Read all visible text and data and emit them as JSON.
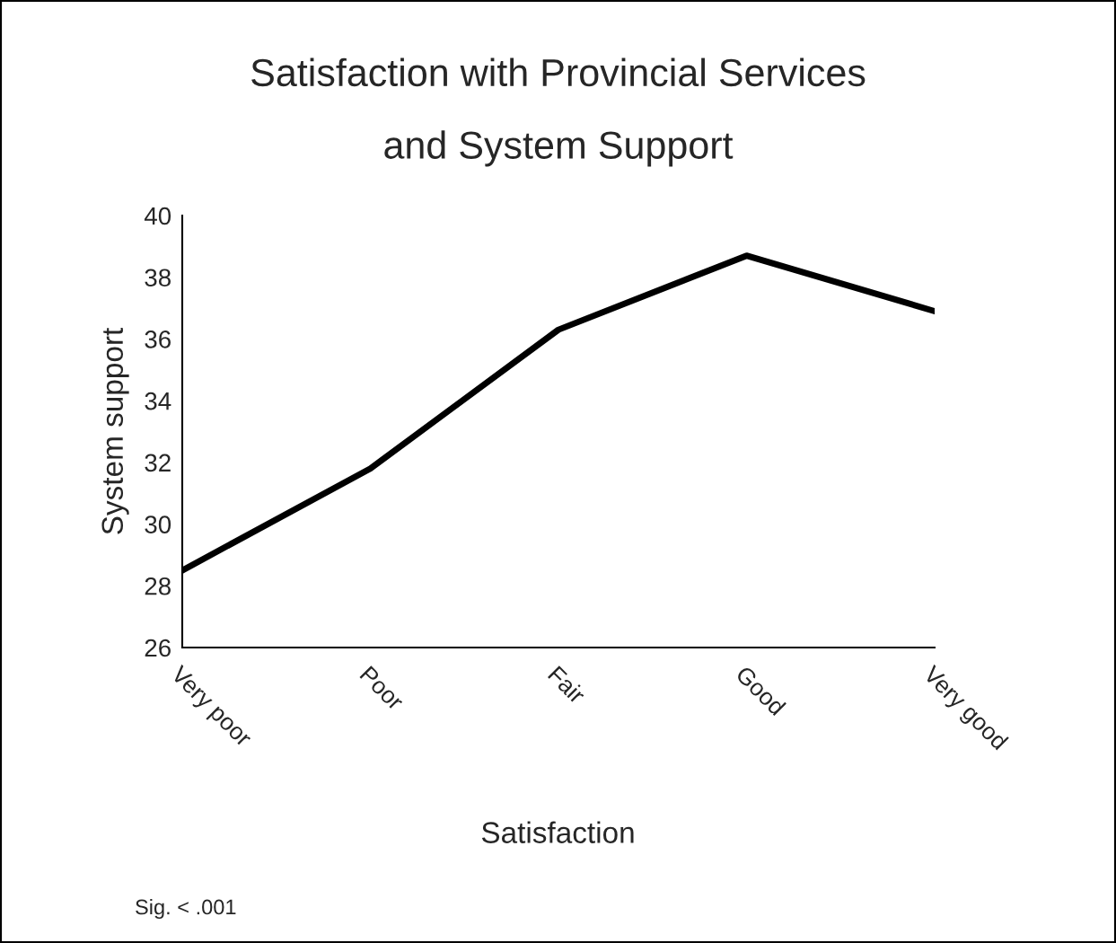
{
  "chart_data": {
    "type": "line",
    "title": "Satisfaction with Provincial Services\nand System Support",
    "xlabel": "Satisfaction",
    "ylabel": "System support",
    "categories": [
      "Very poor",
      "Poor",
      "Fair",
      "Good",
      "Very good"
    ],
    "series": [
      {
        "color": "#000000",
        "values": [
          28.5,
          31.8,
          36.3,
          38.7,
          36.9
        ]
      }
    ],
    "ylim": [
      26,
      40
    ],
    "yticks": [
      26,
      28,
      30,
      32,
      34,
      36,
      38,
      40
    ],
    "grid": false,
    "legend": false,
    "marker": "none",
    "line_style": "solid",
    "annotations": [
      "Sig. < .001"
    ]
  }
}
